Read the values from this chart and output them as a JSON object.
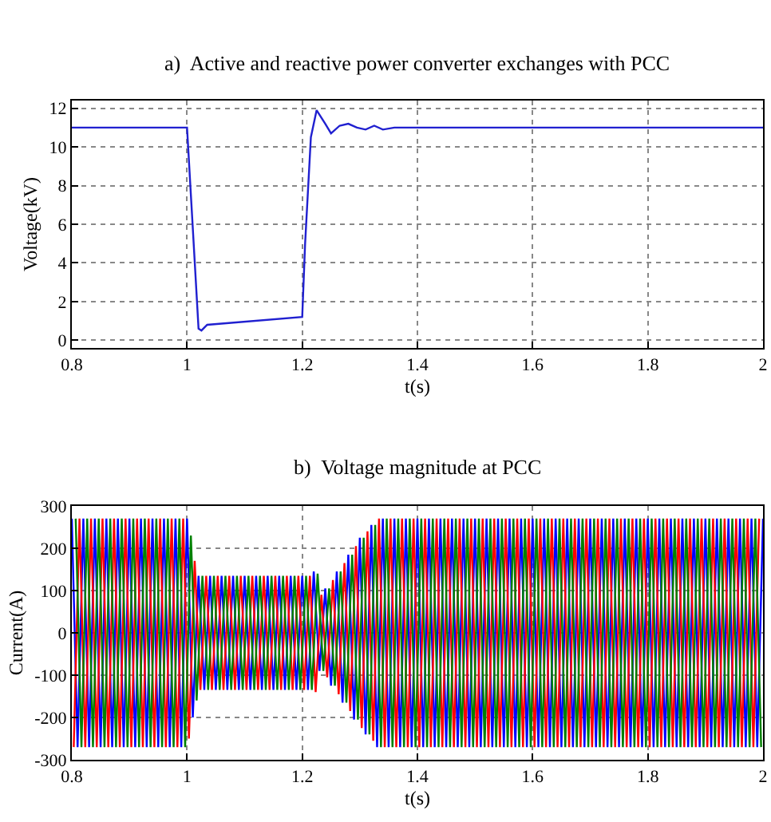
{
  "chart_data": [
    {
      "type": "line",
      "title": "a)  Active and reactive power converter exchanges with PCC",
      "xlabel": "t(s)",
      "ylabel": "Voltage(kV)",
      "xlim": [
        0.8,
        2
      ],
      "xticks": [
        0.8,
        1,
        1.2,
        1.4,
        1.6,
        1.8,
        2
      ],
      "ylim": [
        -0.4,
        12.4
      ],
      "yticks": [
        0,
        2,
        4,
        6,
        8,
        10,
        12
      ],
      "grid": true,
      "x": [
        0.8,
        1.0,
        1.02,
        1.025,
        1.035,
        1.2,
        1.205,
        1.215,
        1.225,
        1.24,
        1.25,
        1.265,
        1.28,
        1.295,
        1.31,
        1.325,
        1.34,
        1.36,
        1.38,
        2.0
      ],
      "series": [
        {
          "color": "#2020d0",
          "values": [
            11,
            11,
            0.6,
            0.5,
            0.8,
            1.2,
            5,
            10.5,
            11.9,
            11.2,
            10.7,
            11.1,
            11.2,
            11.0,
            10.9,
            11.1,
            10.9,
            11.0,
            11.0,
            11
          ]
        }
      ]
    },
    {
      "type": "line",
      "title": "b)  Voltage magnitude at PCC",
      "xlabel": "t(s)",
      "ylabel": "Current(A)",
      "xlim": [
        0.8,
        2
      ],
      "xticks": [
        0.8,
        1,
        1.2,
        1.4,
        1.6,
        1.8,
        2
      ],
      "ylim": [
        -300,
        300
      ],
      "yticks": [
        -300,
        -200,
        -100,
        0,
        100,
        200,
        300
      ],
      "grid": true,
      "series": [
        {
          "color": "#0000ff",
          "x": [
            0.8,
            0.81,
            0.82,
            0.83,
            0.84,
            0.85,
            0.86,
            0.87,
            0.88,
            0.89,
            0.9,
            0.91,
            0.92,
            0.93,
            0.94,
            0.95,
            0.96,
            0.97,
            0.98,
            0.99,
            1.0,
            1.01,
            1.02,
            1.03,
            1.04,
            1.05,
            1.06,
            1.07,
            1.08,
            1.09,
            1.1,
            1.11,
            1.12,
            1.13,
            1.14,
            1.15,
            1.16,
            1.17,
            1.18,
            1.19,
            1.2,
            1.21,
            1.22,
            1.23,
            1.24,
            1.25,
            1.26,
            1.27,
            1.28,
            1.29,
            1.3,
            1.31,
            1.32,
            1.33,
            1.34,
            1.35,
            1.36,
            1.37,
            1.38,
            1.39,
            1.4,
            1.41,
            1.42,
            1.43,
            1.44,
            1.45,
            1.46,
            1.47,
            1.48,
            1.49,
            1.5,
            1.51,
            1.52,
            1.53,
            1.54,
            1.55,
            1.56,
            1.57,
            1.58,
            1.59,
            1.6,
            1.61,
            1.62,
            1.63,
            1.64,
            1.65,
            1.66,
            1.67,
            1.68,
            1.69,
            1.7,
            1.71,
            1.72,
            1.73,
            1.74,
            1.75,
            1.76,
            1.77,
            1.78,
            1.79,
            1.8,
            1.81,
            1.82,
            1.83,
            1.84,
            1.85,
            1.86,
            1.87,
            1.88,
            1.89,
            1.9,
            1.91,
            1.92,
            1.93,
            1.94,
            1.95,
            1.96,
            1.97,
            1.98,
            1.99,
            2.0
          ],
          "values": [
            270,
            -270,
            270,
            -270,
            270,
            -270,
            270,
            -270,
            270,
            -270,
            270,
            -270,
            270,
            -270,
            270,
            -270,
            270,
            -270,
            270,
            -270,
            270,
            -200,
            135,
            -135,
            135,
            -135,
            135,
            -135,
            135,
            -135,
            135,
            -135,
            135,
            -135,
            135,
            -135,
            135,
            -135,
            135,
            -135,
            135,
            -135,
            145,
            -90,
            105,
            -125,
            145,
            -165,
            185,
            -205,
            225,
            -240,
            255,
            -270,
            270,
            -270,
            270,
            -270,
            270,
            -270,
            270,
            -270,
            270,
            -270,
            270,
            -270,
            270,
            -270,
            270,
            -270,
            270,
            -270,
            270,
            -270,
            270,
            -270,
            270,
            -270,
            270,
            -270,
            270,
            -270,
            270,
            -270,
            270,
            -270,
            270,
            -270,
            270,
            -270,
            270,
            -270,
            270,
            -270,
            270,
            -270,
            270,
            -270,
            270,
            -270,
            270,
            -270,
            270,
            -270,
            270,
            -270,
            270,
            -270,
            270,
            -270,
            270,
            -270,
            270,
            -270,
            270,
            -270,
            270,
            -270,
            270,
            -270,
            270
          ]
        },
        {
          "color": "#ff0000",
          "x": [
            0.8033,
            0.8133,
            0.8233,
            0.8333,
            0.8433,
            0.8533,
            0.8633,
            0.8733,
            0.8833,
            0.8933,
            0.9033,
            0.9133,
            0.9233,
            0.9333,
            0.9433,
            0.9533,
            0.9633,
            0.9733,
            0.9833,
            0.9933,
            1.0033,
            1.0133,
            1.0233,
            1.0333,
            1.0433,
            1.0533,
            1.0633,
            1.0733,
            1.0833,
            1.0933,
            1.1033,
            1.1133,
            1.1233,
            1.1333,
            1.1433,
            1.1533,
            1.1633,
            1.1733,
            1.1833,
            1.1933,
            1.2033,
            1.2133,
            1.2233,
            1.2333,
            1.2433,
            1.2533,
            1.2633,
            1.2733,
            1.2833,
            1.2933,
            1.3033,
            1.3133,
            1.3233,
            1.3333,
            1.3433,
            1.3533,
            1.3633,
            1.3733,
            1.3833,
            1.3933,
            1.4033,
            1.4133,
            1.4233,
            1.4333,
            1.4433,
            1.4533,
            1.4633,
            1.4733,
            1.4833,
            1.4933,
            1.5033,
            1.5133,
            1.5233,
            1.5333,
            1.5433,
            1.5533,
            1.5633,
            1.5733,
            1.5833,
            1.5933,
            1.6033,
            1.6133,
            1.6233,
            1.6333,
            1.6433,
            1.6533,
            1.6633,
            1.6733,
            1.6833,
            1.6933,
            1.7033,
            1.7133,
            1.7233,
            1.7333,
            1.7433,
            1.7533,
            1.7633,
            1.7733,
            1.7833,
            1.7933,
            1.8033,
            1.8133,
            1.8233,
            1.8333,
            1.8433,
            1.8533,
            1.8633,
            1.8733,
            1.8833,
            1.8933,
            1.9033,
            1.9133,
            1.9233,
            1.9333,
            1.9433,
            1.9533,
            1.9633,
            1.9733,
            1.9833,
            1.9933
          ],
          "values": [
            -270,
            270,
            -270,
            270,
            -270,
            270,
            -270,
            270,
            -270,
            270,
            -270,
            270,
            -270,
            270,
            -270,
            270,
            -270,
            270,
            -270,
            270,
            -250,
            170,
            -135,
            135,
            -135,
            135,
            -135,
            135,
            -135,
            135,
            -135,
            135,
            -135,
            135,
            -135,
            135,
            -135,
            135,
            -135,
            135,
            -135,
            135,
            -140,
            90,
            -105,
            125,
            -145,
            165,
            -185,
            205,
            -225,
            240,
            -255,
            270,
            -270,
            270,
            -270,
            270,
            -270,
            270,
            -270,
            270,
            -270,
            270,
            -270,
            270,
            -270,
            270,
            -270,
            270,
            -270,
            270,
            -270,
            270,
            -270,
            270,
            -270,
            270,
            -270,
            270,
            -270,
            270,
            -270,
            270,
            -270,
            270,
            -270,
            270,
            -270,
            270,
            -270,
            270,
            -270,
            270,
            -270,
            270,
            -270,
            270,
            -270,
            270,
            -270,
            270,
            -270,
            270,
            -270,
            270,
            -270,
            270,
            -270,
            270,
            -270,
            270,
            -270,
            270,
            -270,
            270,
            -270,
            270,
            -270,
            270
          ]
        },
        {
          "color": "#008000",
          "x": [
            0.8067,
            0.8167,
            0.8267,
            0.8367,
            0.8467,
            0.8567,
            0.8667,
            0.8767,
            0.8867,
            0.8967,
            0.9067,
            0.9167,
            0.9267,
            0.9367,
            0.9467,
            0.9567,
            0.9667,
            0.9767,
            0.9867,
            0.9967,
            1.0067,
            1.0167,
            1.0267,
            1.0367,
            1.0467,
            1.0567,
            1.0667,
            1.0767,
            1.0867,
            1.0967,
            1.1067,
            1.1167,
            1.1267,
            1.1367,
            1.1467,
            1.1567,
            1.1667,
            1.1767,
            1.1867,
            1.1967,
            1.2067,
            1.2167,
            1.2267,
            1.2367,
            1.2467,
            1.2567,
            1.2667,
            1.2767,
            1.2867,
            1.2967,
            1.3067,
            1.3167,
            1.3267,
            1.3367,
            1.3467,
            1.3567,
            1.3667,
            1.3767,
            1.3867,
            1.3967,
            1.4067,
            1.4167,
            1.4267,
            1.4367,
            1.4467,
            1.4567,
            1.4667,
            1.4767,
            1.4867,
            1.4967,
            1.5067,
            1.5167,
            1.5267,
            1.5367,
            1.5467,
            1.5567,
            1.5667,
            1.5767,
            1.5867,
            1.5967,
            1.6067,
            1.6167,
            1.6267,
            1.6367,
            1.6467,
            1.6567,
            1.6667,
            1.6767,
            1.6867,
            1.6967,
            1.7067,
            1.7167,
            1.7267,
            1.7367,
            1.7467,
            1.7567,
            1.7667,
            1.7767,
            1.7867,
            1.7967,
            1.8067,
            1.8167,
            1.8267,
            1.8367,
            1.8467,
            1.8567,
            1.8667,
            1.8767,
            1.8867,
            1.8967,
            1.9067,
            1.9167,
            1.9267,
            1.9367,
            1.9467,
            1.9567,
            1.9667,
            1.9767,
            1.9867,
            1.9967
          ],
          "values": [
            270,
            -270,
            270,
            -270,
            270,
            -270,
            270,
            -270,
            270,
            -270,
            270,
            -270,
            270,
            -270,
            270,
            -270,
            270,
            -270,
            270,
            -270,
            230,
            -160,
            135,
            -135,
            135,
            -135,
            135,
            -135,
            135,
            -135,
            135,
            -135,
            135,
            -135,
            135,
            -135,
            135,
            -135,
            135,
            -135,
            135,
            -135,
            140,
            -90,
            105,
            -125,
            145,
            -165,
            185,
            -205,
            225,
            -240,
            255,
            -270,
            270,
            -270,
            270,
            -270,
            270,
            -270,
            270,
            -270,
            270,
            -270,
            270,
            -270,
            270,
            -270,
            270,
            -270,
            270,
            -270,
            270,
            -270,
            270,
            -270,
            270,
            -270,
            270,
            -270,
            270,
            -270,
            270,
            -270,
            270,
            -270,
            270,
            -270,
            270,
            -270,
            270,
            -270,
            270,
            -270,
            270,
            -270,
            270,
            -270,
            270,
            -270,
            270,
            -270,
            270,
            -270,
            270,
            -270,
            270,
            -270,
            270,
            -270,
            270,
            -270,
            270,
            -270,
            270,
            -270,
            270,
            -270,
            270,
            -270
          ]
        }
      ]
    }
  ]
}
